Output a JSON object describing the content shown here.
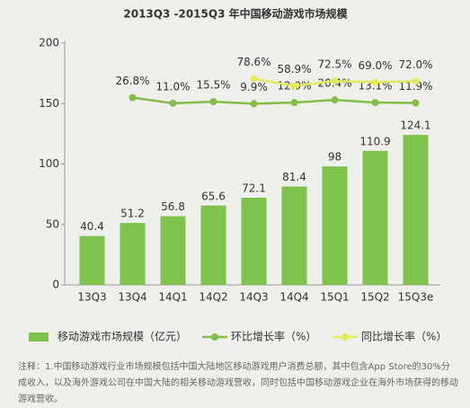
{
  "chart_data": {
    "type": "bar",
    "title": "2013Q3  -2015Q3  年中国移动游戏市场规模",
    "categories": [
      "13Q3",
      "13Q4",
      "14Q1",
      "14Q2",
      "14Q3",
      "14Q4",
      "15Q1",
      "15Q2",
      "15Q3e"
    ],
    "ylim": [
      0,
      200
    ],
    "yticks": [
      0,
      50,
      100,
      150,
      200
    ],
    "y2lim": [
      -490,
      177
    ],
    "series": [
      {
        "name": "移动游戏市场规模（亿元）",
        "type": "bar",
        "color": "#7fc24c",
        "values": [
          40.4,
          51.2,
          56.8,
          65.6,
          72.1,
          81.4,
          98.0,
          110.9,
          124.1
        ]
      },
      {
        "name": "环比增长率（%）",
        "type": "line",
        "axis": "y2",
        "color": "#86bc4a",
        "values": [
          null,
          26.8,
          11.0,
          15.5,
          9.9,
          12.9,
          20.4,
          13.1,
          11.9
        ],
        "value_labels": [
          null,
          "26.8%",
          "11.0%",
          "15.5%",
          "9.9%",
          "12.9%",
          "20.4%",
          "13.1%",
          "11.9%"
        ]
      },
      {
        "name": "同比增长率（%）",
        "type": "line",
        "axis": "y2",
        "color": "#e4ea5a",
        "values": [
          null,
          null,
          null,
          null,
          78.6,
          58.9,
          72.5,
          69.0,
          72.0
        ],
        "value_labels": [
          null,
          null,
          null,
          null,
          "78.6%",
          "58.9%",
          "72.5%",
          "69.0%",
          "72.0%"
        ]
      }
    ],
    "note": "注释：1.中国移动游戏行业市场规模包括中国大陆地区移动游戏用户消费总额，其中包含App Store的30%分成收入，以及海外游戏公司在中国大陆的相关移动游戏营收，同时包括中国移动游戏企业在海外市场获得的移动游戏营收。"
  }
}
